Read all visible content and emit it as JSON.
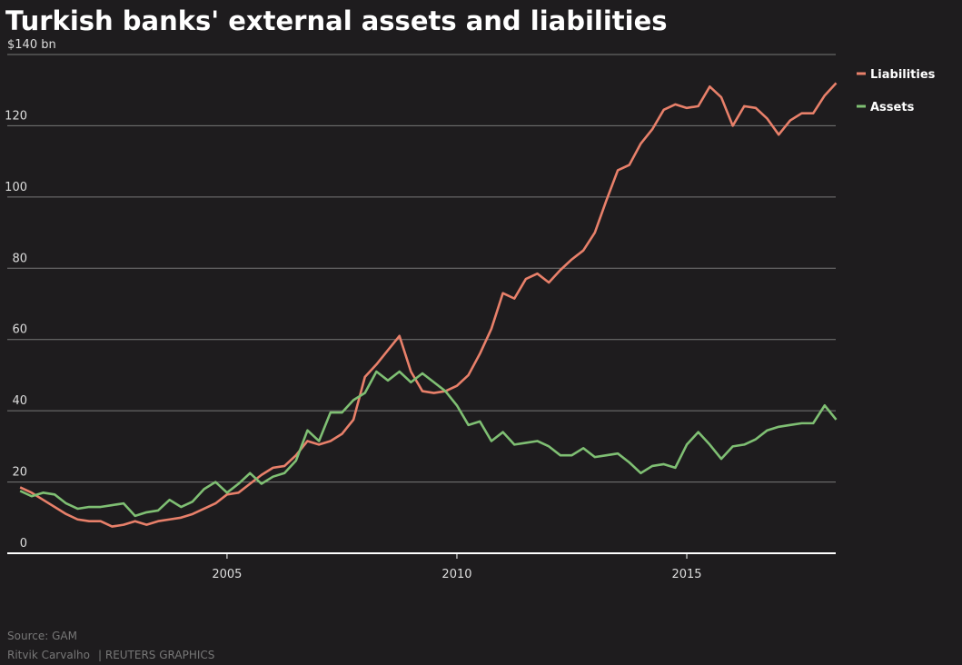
{
  "chart_data": {
    "type": "line",
    "title": "Turkish banks' external assets and liabilities",
    "x": [
      2000.5,
      2000.75,
      2001,
      2001.25,
      2001.5,
      2001.75,
      2002,
      2002.25,
      2002.5,
      2002.75,
      2003,
      2003.25,
      2003.5,
      2003.75,
      2004,
      2004.25,
      2004.5,
      2004.75,
      2005,
      2005.25,
      2005.5,
      2005.75,
      2006,
      2006.25,
      2006.5,
      2006.75,
      2007,
      2007.25,
      2007.5,
      2007.75,
      2008,
      2008.25,
      2008.5,
      2008.75,
      2009,
      2009.25,
      2009.5,
      2009.75,
      2010,
      2010.25,
      2010.5,
      2010.75,
      2011,
      2011.25,
      2011.5,
      2011.75,
      2012,
      2012.25,
      2012.5,
      2012.75,
      2013,
      2013.25,
      2013.5,
      2013.75,
      2014,
      2014.25,
      2014.5,
      2014.75,
      2015,
      2015.25,
      2015.5,
      2015.75,
      2016,
      2016.25,
      2016.5,
      2016.75,
      2017,
      2017.25,
      2017.5,
      2017.75,
      2018,
      2018.25
    ],
    "series": [
      {
        "name": "Liabilities",
        "color": "#e8806a",
        "values": [
          18.5,
          17,
          15,
          13,
          11,
          9.5,
          9,
          9,
          7.5,
          8,
          9,
          8,
          9,
          9.5,
          10,
          11,
          12.5,
          14,
          16.5,
          17,
          19.5,
          22,
          24,
          24.5,
          27.5,
          31.5,
          30.5,
          31.5,
          33.5,
          37.5,
          49.5,
          53,
          57,
          61,
          51,
          45.5,
          45,
          45.5,
          47,
          50,
          56,
          63,
          73,
          71.5,
          77,
          78.5,
          76,
          79.5,
          82.5,
          85,
          90,
          99,
          107.5,
          109,
          115,
          119,
          124.5,
          126,
          125,
          125.5,
          131,
          128,
          120,
          125.5,
          125,
          122,
          117.5,
          121.5,
          123.5,
          123.5,
          128.5,
          132
        ]
      },
      {
        "name": "Assets",
        "color": "#7fbf73",
        "values": [
          17.5,
          16,
          17,
          16.5,
          14,
          12.5,
          13,
          13,
          13.5,
          14,
          10.5,
          11.5,
          12,
          15,
          13,
          14.5,
          18,
          20,
          17,
          19.5,
          22.5,
          19.5,
          21.5,
          22.5,
          26,
          34.5,
          31.5,
          39.5,
          39.5,
          43,
          45,
          51,
          48.5,
          51,
          48,
          50.5,
          48,
          45.5,
          41.5,
          36,
          37,
          31.5,
          34,
          30.5,
          31,
          31.5,
          30,
          27.5,
          27.5,
          29.5,
          27,
          27.5,
          28,
          25.5,
          22.5,
          24.5,
          25,
          24,
          30.5,
          34,
          30.5,
          26.5,
          30,
          30.5,
          32,
          34.5,
          35.5,
          36,
          36.5,
          36.5,
          41.5,
          37.5
        ]
      }
    ],
    "xlim": [
      2000.22,
      2018.24
    ],
    "xticks": [
      2005,
      2010,
      2015
    ],
    "ylim": [
      0,
      140
    ],
    "yticks": [
      0,
      20,
      40,
      60,
      80,
      100,
      120,
      {
        "value": 140,
        "label": "$140 bn"
      }
    ],
    "grid": true,
    "legend": "right",
    "source": "Source: GAM",
    "credit": "Ritvik Carvalho",
    "publisher": "| REUTERS GRAPHICS"
  }
}
